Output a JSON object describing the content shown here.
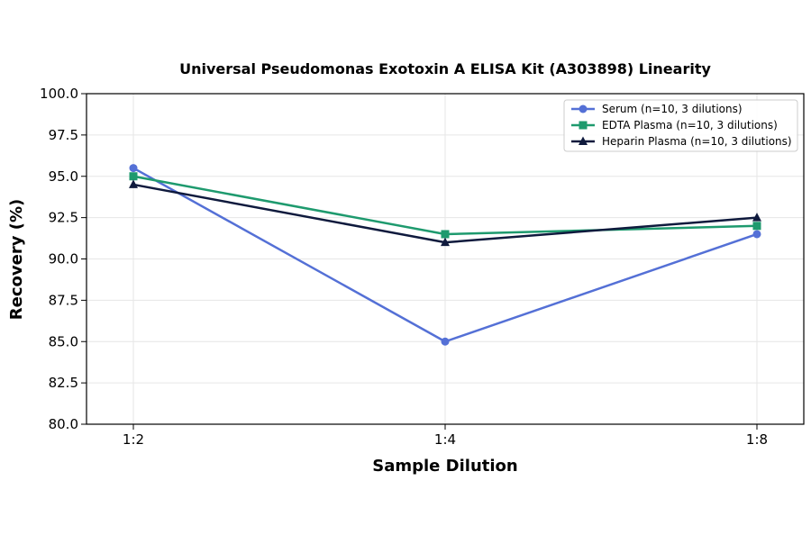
{
  "chart_data": {
    "type": "line",
    "title": "Universal Pseudomonas Exotoxin A ELISA Kit (A303898) Linearity",
    "xlabel": "Sample Dilution",
    "ylabel": "Recovery (%)",
    "categories": [
      "1:2",
      "1:4",
      "1:8"
    ],
    "ylim": [
      80,
      100
    ],
    "yticks": [
      "80.0",
      "82.5",
      "85.0",
      "87.5",
      "90.0",
      "92.5",
      "95.0",
      "97.5",
      "100.0"
    ],
    "grid": true,
    "legend_position": "top-right",
    "series": [
      {
        "name": "Serum (n=10, 3 dilutions)",
        "values": [
          95.5,
          85.0,
          91.5
        ],
        "color": "#5470d6",
        "marker": "circle"
      },
      {
        "name": "EDTA Plasma (n=10, 3 dilutions)",
        "values": [
          95.0,
          91.5,
          92.0
        ],
        "color": "#1e9a6e",
        "marker": "square"
      },
      {
        "name": "Heparin Plasma (n=10, 3 dilutions)",
        "values": [
          94.5,
          91.0,
          92.5
        ],
        "color": "#0f1a3d",
        "marker": "triangle"
      }
    ]
  }
}
